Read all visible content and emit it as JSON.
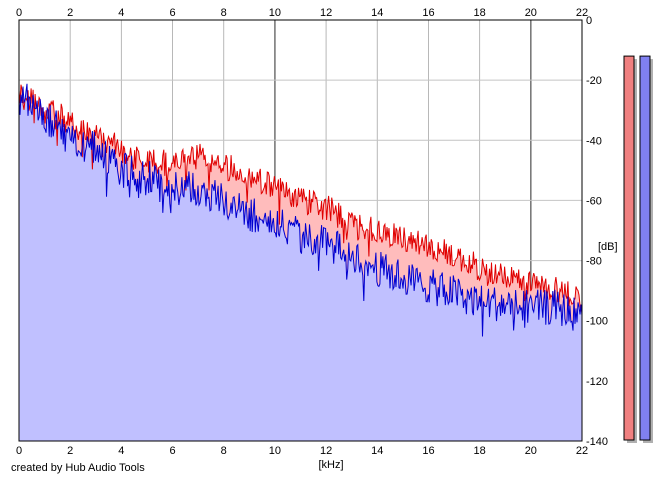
{
  "credit": "created by Hub Audio Tools",
  "chart_data": {
    "type": "area",
    "xlabel": "[kHz]",
    "ylabel": "[dB]",
    "xlim": [
      0,
      22
    ],
    "ylim": [
      -140,
      0
    ],
    "x_ticks": [
      0,
      2,
      4,
      6,
      8,
      10,
      12,
      14,
      16,
      18,
      20,
      22
    ],
    "y_ticks": [
      0,
      -20,
      -40,
      -60,
      -80,
      -100,
      -120,
      -140
    ],
    "grid": true,
    "x": [
      0,
      0.25,
      0.5,
      0.75,
      1,
      1.5,
      2,
      2.5,
      3,
      4,
      5,
      6,
      7,
      8,
      9,
      10,
      11,
      12,
      13,
      14,
      15,
      16,
      17,
      18,
      19,
      20,
      21,
      22
    ],
    "series": [
      {
        "color": "#e00000",
        "fill": "#ffbcbc",
        "values": [
          -25,
          -23,
          -24,
          -28,
          -30,
          -31,
          -34,
          -36,
          -37,
          -43,
          -47,
          -47,
          -45,
          -48,
          -51,
          -55,
          -59,
          -62,
          -67,
          -70,
          -72,
          -75,
          -78,
          -82,
          -85,
          -87,
          -89,
          -92
        ]
      },
      {
        "color": "#0000d0",
        "fill": "#c0c0ff",
        "values": [
          -27,
          -25,
          -26,
          -30,
          -32,
          -35,
          -40,
          -41,
          -42,
          -49,
          -52,
          -55,
          -56,
          -60,
          -64,
          -67,
          -71,
          -74,
          -77,
          -82,
          -85,
          -88,
          -90,
          -93,
          -94,
          -95,
          -95,
          -98
        ]
      }
    ],
    "level_meters": [
      {
        "color": "#f08080",
        "level": 0.955
      },
      {
        "color": "#8080f0",
        "level": 0.955
      }
    ]
  }
}
